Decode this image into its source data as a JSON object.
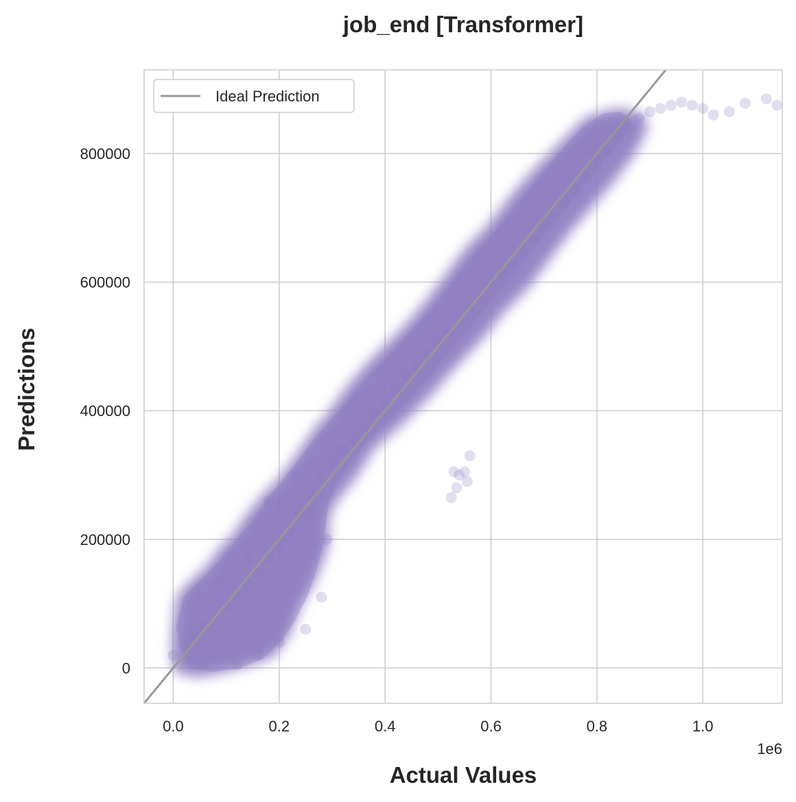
{
  "chart_data": {
    "type": "scatter",
    "title": "job_end [Transformer]",
    "xlabel": "Actual Values",
    "ylabel": "Predictions",
    "x_offset_text": "1e6",
    "xlim": [
      -55000,
      1150000
    ],
    "ylim": [
      -55000,
      930000
    ],
    "xticks": [
      0,
      200000,
      400000,
      600000,
      800000,
      1000000
    ],
    "xtick_labels": [
      "0.0",
      "0.2",
      "0.4",
      "0.6",
      "0.8",
      "1.0"
    ],
    "yticks": [
      0,
      200000,
      400000,
      600000,
      800000
    ],
    "ytick_labels": [
      "0",
      "200000",
      "400000",
      "600000",
      "800000"
    ],
    "grid": true,
    "legend": {
      "placement": "top-left",
      "entries": [
        "Ideal Prediction"
      ]
    },
    "colors": {
      "points": "#8c7cc0",
      "ideal_line": "#999999",
      "grid": "#cccccc"
    },
    "series": [
      {
        "name": "",
        "x": [
          0,
          20000,
          40000,
          60000,
          80000,
          100000,
          120000,
          140000,
          160000,
          180000,
          200000,
          220000,
          240000,
          260000,
          280000,
          300000,
          320000,
          340000,
          360000,
          380000,
          400000,
          420000,
          440000,
          460000,
          480000,
          500000,
          520000,
          540000,
          560000,
          580000,
          600000,
          620000,
          640000,
          660000,
          680000,
          700000,
          720000,
          740000,
          760000,
          780000,
          800000,
          820000,
          840000,
          860000,
          880000,
          900000,
          920000,
          940000,
          960000,
          980000,
          1000000,
          1020000,
          1050000,
          1080000,
          1120000,
          1140000,
          530000,
          540000,
          550000,
          560000,
          555000,
          535000,
          525000,
          45000,
          90000,
          140000,
          180000,
          230000,
          260000,
          290000,
          120000,
          160000,
          200000,
          250000,
          280000
        ],
        "y": [
          20000,
          35000,
          50000,
          65000,
          80000,
          95000,
          110000,
          130000,
          150000,
          170000,
          190000,
          215000,
          240000,
          265000,
          295000,
          320000,
          340000,
          355000,
          375000,
          395000,
          410000,
          430000,
          455000,
          470000,
          490000,
          505000,
          520000,
          540000,
          560000,
          575000,
          595000,
          615000,
          630000,
          650000,
          665000,
          690000,
          705000,
          725000,
          745000,
          765000,
          785000,
          805000,
          825000,
          840000,
          855000,
          865000,
          870000,
          875000,
          880000,
          875000,
          870000,
          860000,
          865000,
          878000,
          885000,
          875000,
          305000,
          300000,
          305000,
          330000,
          290000,
          280000,
          265000,
          110000,
          135000,
          170000,
          260000,
          300000,
          240000,
          200000,
          5000,
          20000,
          40000,
          60000,
          110000
        ]
      }
    ]
  }
}
